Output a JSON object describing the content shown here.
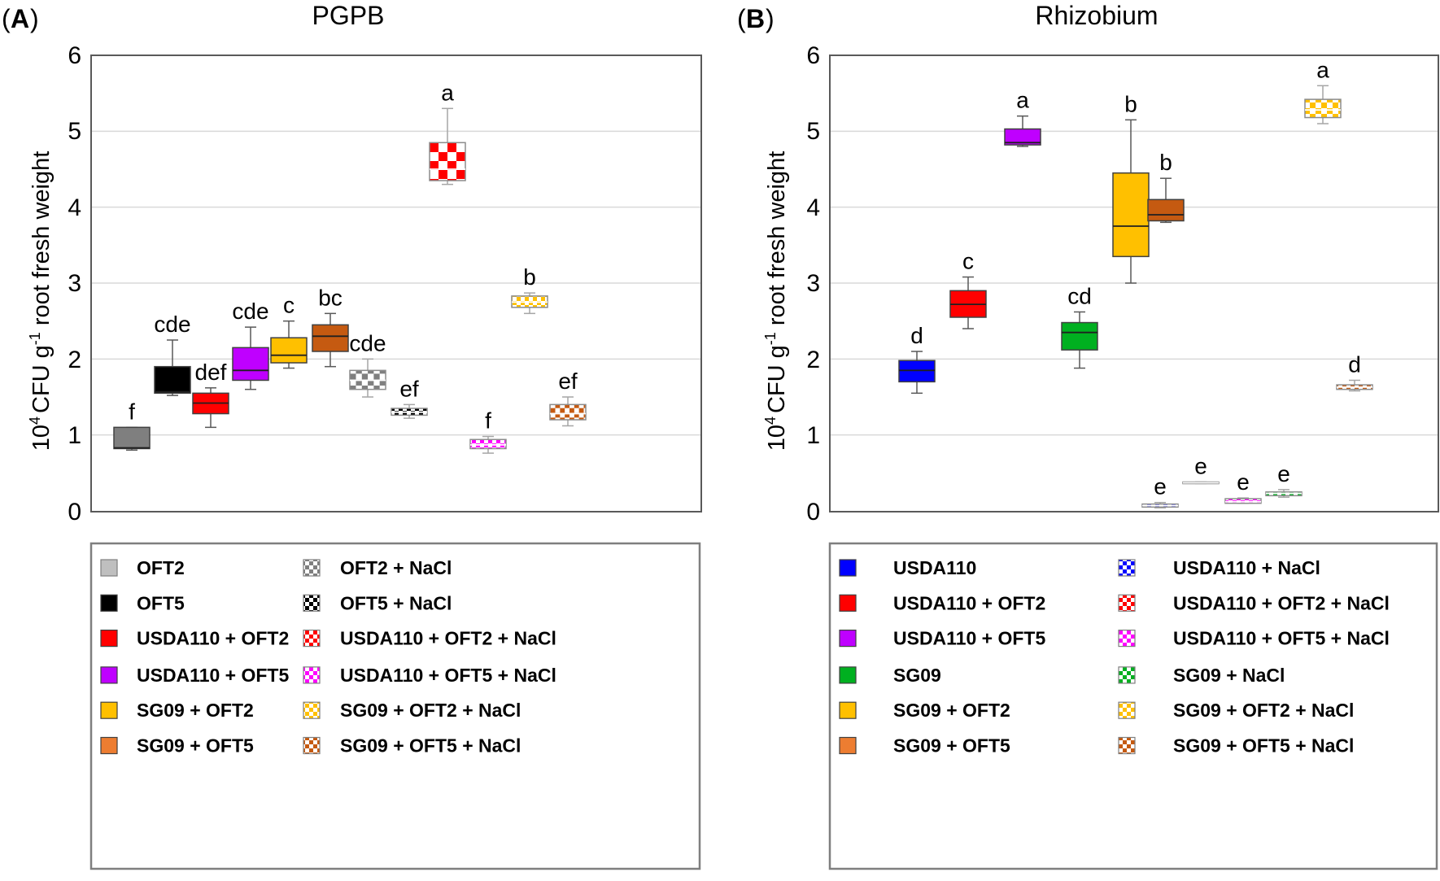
{
  "panels": [
    {
      "letter": "A",
      "title": "PGPB",
      "ylabel": "CFU g",
      "ylabel_prefix": "10",
      "ylabel_prefix_sup": "4",
      "ylabel_sup": "-1",
      "ylabel_suffix": " root fresh weight",
      "yticks": [
        "0",
        "1",
        "2",
        "3",
        "4",
        "5",
        "6"
      ]
    },
    {
      "letter": "B",
      "title": "Rhizobium",
      "ylabel": "CFU g",
      "ylabel_prefix": "10",
      "ylabel_prefix_sup": "4",
      "ylabel_sup": "-1",
      "ylabel_suffix": " root fresh weight",
      "yticks": [
        "0",
        "1",
        "2",
        "3",
        "4",
        "5",
        "6"
      ]
    }
  ],
  "chart_data": [
    {
      "type": "boxplot",
      "title": "PGPB",
      "ylabel": "10^4 CFU g^-1 root fresh weight",
      "ylim": [
        0,
        6
      ],
      "yticks": [
        0,
        1,
        2,
        3,
        4,
        5,
        6
      ],
      "grid": true,
      "series": [
        {
          "name": "OFT2",
          "min": 0.8,
          "q1": 0.82,
          "median": 0.83,
          "q3": 1.1,
          "max": 1.1,
          "letter": "f",
          "color": "#7f7f7f",
          "pattern": "solid"
        },
        {
          "name": "OFT5",
          "min": 1.52,
          "q1": 1.55,
          "median": 1.57,
          "q3": 1.9,
          "max": 2.25,
          "letter": "cde",
          "color": "#000000",
          "pattern": "solid"
        },
        {
          "name": "USDA110 + OFT2",
          "min": 1.1,
          "q1": 1.28,
          "median": 1.42,
          "q3": 1.55,
          "max": 1.62,
          "letter": "def",
          "color": "#ff0000",
          "pattern": "solid"
        },
        {
          "name": "USDA110 + OFT5",
          "min": 1.6,
          "q1": 1.72,
          "median": 1.85,
          "q3": 2.15,
          "max": 2.42,
          "letter": "cde",
          "color": "#bf00ff",
          "pattern": "solid"
        },
        {
          "name": "SG09 + OFT2",
          "min": 1.88,
          "q1": 1.95,
          "median": 2.05,
          "q3": 2.28,
          "max": 2.5,
          "letter": "c",
          "color": "#ffc000",
          "pattern": "solid"
        },
        {
          "name": "SG09 + OFT5",
          "min": 1.9,
          "q1": 2.1,
          "median": 2.3,
          "q3": 2.45,
          "max": 2.6,
          "letter": "bc",
          "color": "#c55a11",
          "pattern": "solid"
        },
        {
          "name": "OFT2 + NaCl",
          "min": 1.5,
          "q1": 1.6,
          "median": 1.72,
          "q3": 1.85,
          "max": 2.0,
          "letter": "cde",
          "color": "#7f7f7f",
          "pattern": "check"
        },
        {
          "name": "OFT5 + NaCl",
          "min": 1.22,
          "q1": 1.26,
          "median": 1.3,
          "q3": 1.35,
          "max": 1.4,
          "letter": "ef",
          "color": "#000000",
          "pattern": "check"
        },
        {
          "name": "USDA110 + OFT2 + NaCl",
          "min": 4.3,
          "q1": 4.35,
          "median": 4.5,
          "q3": 4.85,
          "max": 5.3,
          "letter": "a",
          "color": "#ff0000",
          "pattern": "check"
        },
        {
          "name": "USDA110 + OFT5 + NaCl",
          "min": 0.76,
          "q1": 0.82,
          "median": 0.87,
          "q3": 0.94,
          "max": 0.98,
          "letter": "f",
          "color": "#ff00ff",
          "pattern": "check"
        },
        {
          "name": "SG09 + OFT2 + NaCl",
          "min": 2.6,
          "q1": 2.68,
          "median": 2.75,
          "q3": 2.83,
          "max": 2.87,
          "letter": "b",
          "color": "#ffc000",
          "pattern": "check"
        },
        {
          "name": "SG09 + OFT5 + NaCl",
          "min": 1.12,
          "q1": 1.2,
          "median": 1.28,
          "q3": 1.4,
          "max": 1.5,
          "letter": "ef",
          "color": "#c55a11",
          "pattern": "check"
        }
      ]
    },
    {
      "type": "boxplot",
      "title": "Rhizobium",
      "ylabel": "10^4 CFU g^-1 root fresh weight",
      "ylim": [
        0,
        6
      ],
      "yticks": [
        0,
        1,
        2,
        3,
        4,
        5,
        6
      ],
      "grid": true,
      "series": [
        {
          "name": "USDA110",
          "min": 1.55,
          "q1": 1.7,
          "median": 1.85,
          "q3": 1.98,
          "max": 2.1,
          "letter": "d",
          "color": "#0000ff",
          "pattern": "solid"
        },
        {
          "name": "USDA110 + OFT2",
          "min": 2.4,
          "q1": 2.55,
          "median": 2.72,
          "q3": 2.9,
          "max": 3.08,
          "letter": "c",
          "color": "#ff0000",
          "pattern": "solid"
        },
        {
          "name": "USDA110 + OFT5",
          "min": 4.8,
          "q1": 4.82,
          "median": 4.85,
          "q3": 5.03,
          "max": 5.2,
          "letter": "a",
          "color": "#bf00ff",
          "pattern": "solid"
        },
        {
          "name": "SG09",
          "min": 1.88,
          "q1": 2.12,
          "median": 2.35,
          "q3": 2.48,
          "max": 2.62,
          "letter": "cd",
          "color": "#00b020",
          "pattern": "solid"
        },
        {
          "name": "SG09 + OFT2",
          "min": 3.0,
          "q1": 3.35,
          "median": 3.75,
          "q3": 4.45,
          "max": 5.15,
          "letter": "b",
          "color": "#ffc000",
          "pattern": "solid"
        },
        {
          "name": "SG09 + OFT5",
          "min": 3.8,
          "q1": 3.82,
          "median": 3.9,
          "q3": 4.1,
          "max": 4.38,
          "letter": "b",
          "color": "#c55a11",
          "pattern": "solid"
        },
        {
          "name": "USDA110 + NaCl",
          "min": 0.04,
          "q1": 0.05,
          "median": 0.07,
          "q3": 0.09,
          "max": 0.11,
          "letter": "e",
          "color": "#0000ff",
          "pattern": "check"
        },
        {
          "name": "USDA110 + OFT2 + NaCl",
          "min": 0.36,
          "q1": 0.36,
          "median": 0.37,
          "q3": 0.38,
          "max": 0.38,
          "letter": "e",
          "color": "#ff0000",
          "pattern": "check"
        },
        {
          "name": "USDA110 + OFT5 + NaCl",
          "min": 0.1,
          "q1": 0.1,
          "median": 0.12,
          "q3": 0.16,
          "max": 0.17,
          "letter": "e",
          "color": "#ff00ff",
          "pattern": "check"
        },
        {
          "name": "SG09 + NaCl",
          "min": 0.18,
          "q1": 0.2,
          "median": 0.23,
          "q3": 0.25,
          "max": 0.28,
          "letter": "e",
          "color": "#00b020",
          "pattern": "check"
        },
        {
          "name": "SG09 + OFT2 + NaCl",
          "min": 5.1,
          "q1": 5.18,
          "median": 5.28,
          "q3": 5.42,
          "max": 5.6,
          "letter": "a",
          "color": "#ffc000",
          "pattern": "check"
        },
        {
          "name": "SG09 + OFT5 + NaCl",
          "min": 1.58,
          "q1": 1.6,
          "median": 1.63,
          "q3": 1.66,
          "max": 1.72,
          "letter": "d",
          "color": "#c55a11",
          "pattern": "check"
        }
      ]
    }
  ],
  "legends": [
    {
      "columns": [
        [
          {
            "label": "OFT2",
            "color": "#bfbfbf",
            "pattern": "solid"
          },
          {
            "label": "OFT5",
            "color": "#000000",
            "pattern": "solid"
          },
          {
            "label": "USDA110 + OFT2",
            "color": "#ff0000",
            "pattern": "solid"
          },
          {
            "label": "USDA110 + OFT5",
            "color": "#bf00ff",
            "pattern": "solid"
          },
          {
            "label": "SG09 + OFT2",
            "color": "#ffc000",
            "pattern": "solid"
          },
          {
            "label": "SG09 + OFT5",
            "color": "#ed7d31",
            "pattern": "solid"
          }
        ],
        [
          {
            "label": "OFT2 + NaCl",
            "color": "#7f7f7f",
            "pattern": "check"
          },
          {
            "label": "OFT5 + NaCl",
            "color": "#000000",
            "pattern": "check"
          },
          {
            "label": "USDA110 + OFT2 + NaCl",
            "color": "#ff0000",
            "pattern": "check"
          },
          {
            "label": "USDA110 + OFT5 + NaCl",
            "color": "#ff00ff",
            "pattern": "check"
          },
          {
            "label": "SG09 + OFT2 + NaCl",
            "color": "#ffc000",
            "pattern": "check"
          },
          {
            "label": "SG09 + OFT5 + NaCl",
            "color": "#c55a11",
            "pattern": "check"
          }
        ]
      ]
    },
    {
      "columns": [
        [
          {
            "label": "USDA110",
            "color": "#0000ff",
            "pattern": "solid"
          },
          {
            "label": "USDA110 + OFT2",
            "color": "#ff0000",
            "pattern": "solid"
          },
          {
            "label": "USDA110 + OFT5",
            "color": "#bf00ff",
            "pattern": "solid"
          },
          {
            "label": "SG09",
            "color": "#00b020",
            "pattern": "solid"
          },
          {
            "label": "SG09 + OFT2",
            "color": "#ffc000",
            "pattern": "solid"
          },
          {
            "label": "SG09 + OFT5",
            "color": "#ed7d31",
            "pattern": "solid"
          }
        ],
        [
          {
            "label": "USDA110 + NaCl",
            "color": "#0000ff",
            "pattern": "check"
          },
          {
            "label": "USDA110 + OFT2 + NaCl",
            "color": "#ff0000",
            "pattern": "check"
          },
          {
            "label": "USDA110 + OFT5 + NaCl",
            "color": "#ff00ff",
            "pattern": "check"
          },
          {
            "label": "SG09 + NaCl",
            "color": "#00b020",
            "pattern": "check"
          },
          {
            "label": "SG09 + OFT2 + NaCl",
            "color": "#ffc000",
            "pattern": "check"
          },
          {
            "label": "SG09 + OFT5 + NaCl",
            "color": "#c55a11",
            "pattern": "check"
          }
        ]
      ]
    }
  ]
}
